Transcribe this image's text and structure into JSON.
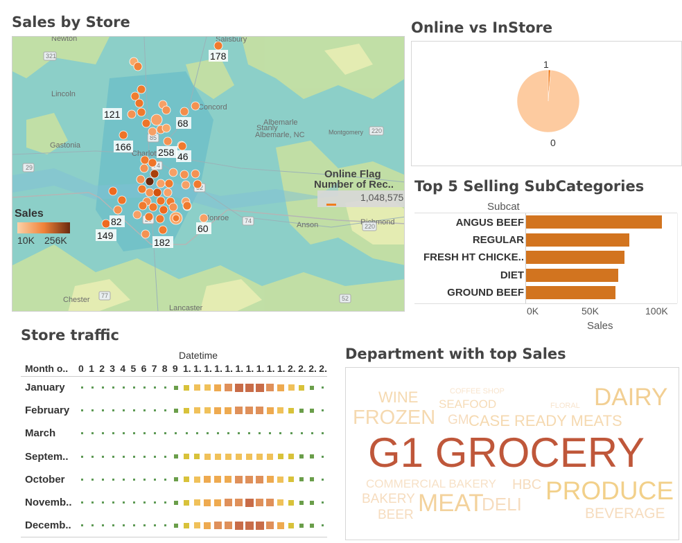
{
  "sales_map": {
    "title": "Sales by Store",
    "legend_title": "Sales",
    "legend_min": "10K",
    "legend_max": "256K",
    "tooltip_title": "Online Flag",
    "tooltip_subtitle": "Number of Rec..",
    "tooltip_value": "1,048,575",
    "place_names": [
      "Newton",
      "Salisbury",
      "Lincoln",
      "Concord",
      "Albemarle",
      "Stanly",
      "Albemarle, NC",
      "Montgomery",
      "Gastonia",
      "Charlotte",
      "Anson",
      "Richmond",
      "Monroe",
      "Chester",
      "Lancaster"
    ],
    "road_shields": [
      "321",
      "29",
      "85",
      "52",
      "220",
      "29",
      "74",
      "220",
      "74",
      "77",
      "52"
    ],
    "store_labels": [
      "178",
      "121",
      "68",
      "166",
      "258",
      "46",
      "82",
      "149",
      "182",
      "60"
    ],
    "colors": {
      "low": "#fbd2a9",
      "mid": "#f0833a",
      "high": "#6b2a0f"
    }
  },
  "online_vs_instore": {
    "title": "Online vs InStore",
    "label_online": "1",
    "label_instore": "0"
  },
  "top5": {
    "title": "Top 5 Selling SubCategories",
    "header": "Subcat",
    "axis_title": "Sales",
    "ticks": [
      "0K",
      "50K",
      "100K"
    ]
  },
  "traffic": {
    "title": "Store traffic",
    "column_header": "Datetime",
    "row_header": "Month o..",
    "hour_headers": [
      "0",
      "1",
      "2",
      "3",
      "4",
      "5",
      "6",
      "7",
      "8",
      "9",
      "1.",
      "1.",
      "1.",
      "1.",
      "1.",
      "1.",
      "1.",
      "1.",
      "1.",
      "1.",
      "2.",
      "2.",
      "2.",
      "2."
    ],
    "months": [
      "January",
      "February",
      "March",
      "Septem..",
      "October",
      "Novemb..",
      "Decemb.."
    ]
  },
  "departments": {
    "title": "Department with top Sales",
    "words": [
      "G1 GROCERY",
      "DAIRY",
      "PRODUCE",
      "MEAT",
      "FROZEN",
      "CASE READY MEATS",
      "WINE",
      "SEAFOOD",
      "DELI",
      "HBC",
      "BEVERAGE",
      "COMMERCIAL BAKERY",
      "BAKERY",
      "BEER",
      "GM",
      "COFFEE SHOP",
      "FLORAL"
    ]
  },
  "chart_data": [
    {
      "type": "pie",
      "title": "Online vs InStore",
      "labels": [
        "1",
        "0"
      ],
      "values": [
        0.012,
        0.988
      ],
      "colors": [
        "#f07d1e",
        "#fdcba0"
      ]
    },
    {
      "type": "bar",
      "title": "Top 5 Selling SubCategories",
      "orientation": "horizontal",
      "categories": [
        "ANGUS BEEF",
        "REGULAR",
        "FRESH HT CHICKE..",
        "DIET",
        "GROUND BEEF"
      ],
      "values": [
        108000,
        82000,
        78000,
        73000,
        71000
      ],
      "xlabel": "Sales",
      "ylabel": "Subcat",
      "xlim": [
        0,
        120000
      ],
      "color": "#d2741f"
    },
    {
      "type": "heatmap",
      "title": "Store traffic",
      "rows": [
        "January",
        "February",
        "March",
        "Septem..",
        "October",
        "Novemb..",
        "Decemb.."
      ],
      "columns": [
        "0",
        "1",
        "2",
        "3",
        "4",
        "5",
        "6",
        "7",
        "8",
        "9",
        "1.",
        "1.",
        "1.",
        "1.",
        "1.",
        "1.",
        "1.",
        "1.",
        "1.",
        "1.",
        "2.",
        "2.",
        "2.",
        "2."
      ],
      "values": [
        [
          1,
          1,
          1,
          1,
          1,
          1,
          1,
          1,
          1,
          2,
          3,
          4,
          4,
          5,
          6,
          7,
          7,
          7,
          6,
          5,
          4,
          3,
          2,
          1
        ],
        [
          1,
          1,
          1,
          1,
          1,
          1,
          1,
          1,
          1,
          2,
          3,
          4,
          4,
          5,
          5,
          6,
          6,
          6,
          5,
          4,
          3,
          2,
          2,
          1
        ],
        [
          1,
          1,
          1,
          1,
          1,
          1,
          1,
          1,
          1,
          1,
          1,
          1,
          1,
          1,
          1,
          1,
          1,
          1,
          1,
          1,
          1,
          1,
          1,
          1
        ],
        [
          1,
          1,
          1,
          1,
          1,
          1,
          1,
          1,
          1,
          2,
          3,
          3,
          4,
          4,
          4,
          4,
          4,
          4,
          4,
          3,
          3,
          2,
          2,
          1
        ],
        [
          1,
          1,
          1,
          1,
          1,
          1,
          1,
          1,
          1,
          2,
          3,
          4,
          5,
          5,
          5,
          6,
          6,
          6,
          5,
          4,
          3,
          2,
          2,
          1
        ],
        [
          1,
          1,
          1,
          1,
          1,
          1,
          1,
          1,
          1,
          2,
          3,
          4,
          5,
          5,
          6,
          6,
          7,
          6,
          6,
          4,
          3,
          2,
          2,
          1
        ],
        [
          1,
          1,
          1,
          1,
          1,
          1,
          1,
          1,
          1,
          2,
          3,
          4,
          5,
          6,
          6,
          7,
          7,
          7,
          6,
          5,
          3,
          2,
          2,
          1
        ]
      ]
    }
  ]
}
